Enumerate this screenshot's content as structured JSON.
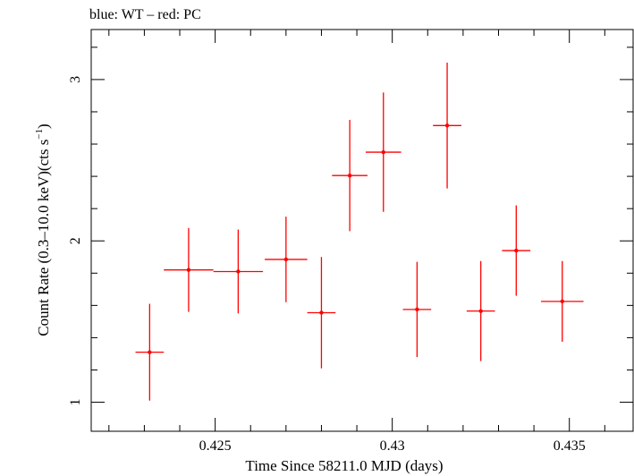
{
  "chart_data": {
    "type": "scatter",
    "title": "blue: WT – red: PC",
    "xlabel": "Time Since 58211.0 MJD (days)",
    "ylabel_main": "Count Rate (0.3–10.0 keV)(cts s",
    "ylabel_sup": "−1",
    "ylabel_end": ")",
    "xlim": [
      0.4215,
      0.4368
    ],
    "ylim": [
      0.82,
      3.31
    ],
    "xticks_major": [
      0.425,
      0.43,
      0.435
    ],
    "xtick_labels": [
      "0.425",
      "0.43",
      "0.435"
    ],
    "xticks_minor": [
      0.422,
      0.423,
      0.424,
      0.426,
      0.427,
      0.428,
      0.429,
      0.431,
      0.432,
      0.433,
      0.434,
      0.436
    ],
    "yticks_major": [
      1,
      2,
      3
    ],
    "ytick_labels": [
      "1",
      "2",
      "3"
    ],
    "yticks_minor": [
      1.2,
      1.4,
      1.6,
      1.8,
      2.2,
      2.4,
      2.6,
      2.8,
      3.2
    ],
    "grid": false,
    "colors": {
      "PC": "#ff0000",
      "WT": "#0000ff",
      "axes": "#000000"
    },
    "series": [
      {
        "name": "PC",
        "color": "#ff0000",
        "points": [
          {
            "x": 0.42315,
            "xerr": 0.0004,
            "y": 1.31,
            "yerr_lo": 0.3,
            "yerr_hi": 0.3
          },
          {
            "x": 0.42425,
            "xerr": 0.0007,
            "y": 1.82,
            "yerr_lo": 0.26,
            "yerr_hi": 0.26
          },
          {
            "x": 0.42565,
            "xerr": 0.0007,
            "y": 1.81,
            "yerr_lo": 0.26,
            "yerr_hi": 0.26
          },
          {
            "x": 0.427,
            "xerr": 0.0006,
            "y": 1.885,
            "yerr_lo": 0.265,
            "yerr_hi": 0.265
          },
          {
            "x": 0.428,
            "xerr": 0.0004,
            "y": 1.555,
            "yerr_lo": 0.345,
            "yerr_hi": 0.345
          },
          {
            "x": 0.4288,
            "xerr": 0.0005,
            "y": 2.405,
            "yerr_lo": 0.345,
            "yerr_hi": 0.345
          },
          {
            "x": 0.42975,
            "xerr": 0.0005,
            "y": 2.55,
            "yerr_lo": 0.37,
            "yerr_hi": 0.37
          },
          {
            "x": 0.4307,
            "xerr": 0.0004,
            "y": 1.575,
            "yerr_lo": 0.295,
            "yerr_hi": 0.295
          },
          {
            "x": 0.43155,
            "xerr": 0.0004,
            "y": 2.715,
            "yerr_lo": 0.39,
            "yerr_hi": 0.39
          },
          {
            "x": 0.4325,
            "xerr": 0.0004,
            "y": 1.565,
            "yerr_lo": 0.31,
            "yerr_hi": 0.31
          },
          {
            "x": 0.4335,
            "xerr": 0.0004,
            "y": 1.94,
            "yerr_lo": 0.28,
            "yerr_hi": 0.28
          },
          {
            "x": 0.4348,
            "xerr": 0.0006,
            "y": 1.625,
            "yerr_lo": 0.25,
            "yerr_hi": 0.25
          }
        ]
      }
    ]
  }
}
